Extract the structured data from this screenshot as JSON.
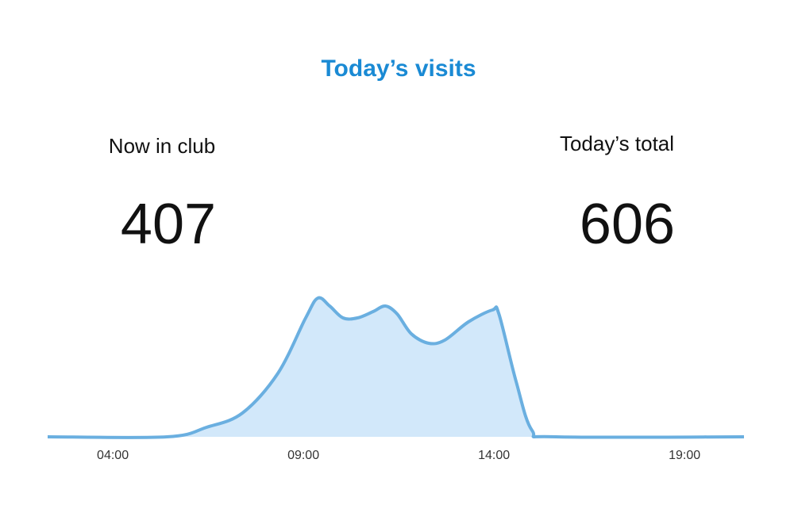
{
  "header": {
    "title": "Today’s visits"
  },
  "stats": [
    {
      "label": "Now in club",
      "value": 407
    },
    {
      "label": "Today’s total",
      "value": 606
    }
  ],
  "chart_data": {
    "type": "area",
    "x": [
      2.29,
      5.42,
      6.46,
      7.4,
      8.33,
      9.06,
      9.38,
      9.69,
      10.04,
      10.42,
      10.83,
      11.15,
      11.46,
      11.83,
      12.29,
      12.71,
      13.33,
      13.96,
      14.13,
      14.58,
      15.0,
      15.63,
      20.56
    ],
    "values": [
      0,
      0,
      12,
      30,
      80,
      150,
      175,
      165,
      150,
      150,
      158,
      165,
      155,
      130,
      118,
      122,
      145,
      160,
      155,
      70,
      8,
      0,
      0
    ],
    "xlim": [
      2.29,
      20.56
    ],
    "ylim": [
      0,
      200
    ],
    "xticks": [
      {
        "value": 4,
        "label": "04:00"
      },
      {
        "value": 9,
        "label": "09:00"
      },
      {
        "value": 14,
        "label": "14:00"
      },
      {
        "value": 19,
        "label": "19:00"
      }
    ],
    "color": "#6aafe0",
    "fill": "#d2e8fa"
  }
}
